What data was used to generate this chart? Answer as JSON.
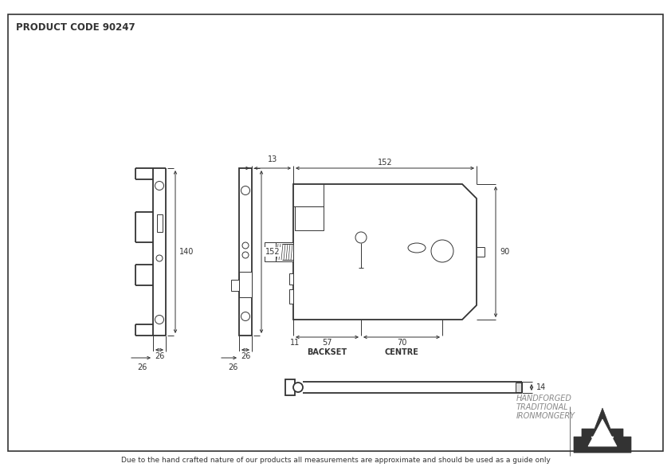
{
  "title": "PRODUCT CODE 90247",
  "footer": "Due to the hand crafted nature of our products all measurements are approximate and should be used as a guide only",
  "brand_line1": "HANDFORGED",
  "brand_line2": "TRADITIONAL",
  "brand_line3": "IRONMONGERY",
  "bg_color": "#ffffff",
  "line_color": "#333333",
  "dim_140": "140",
  "dim_152_vert": "152",
  "dim_152_horiz": "152",
  "dim_90": "90",
  "dim_26_left": "26",
  "dim_26_mid": "26",
  "dim_13": "13",
  "dim_11": "11",
  "dim_57": "57",
  "dim_70": "70",
  "dim_14": "14",
  "label_backset": "BACKSET",
  "label_centre": "CENTRE"
}
